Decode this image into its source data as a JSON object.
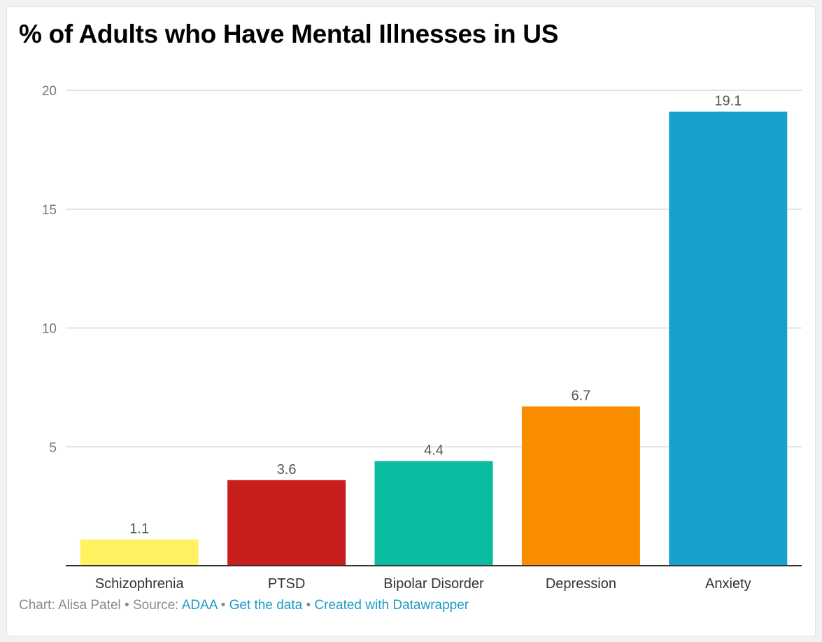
{
  "chart_data": {
    "type": "bar",
    "title": "% of Adults who Have Mental Illnesses in US",
    "categories": [
      "Schizophrenia",
      "PTSD",
      "Bipolar Disorder",
      "Depression",
      "Anxiety"
    ],
    "values": [
      1.1,
      3.6,
      4.4,
      6.7,
      19.1
    ],
    "value_labels": [
      "1.1",
      "3.6",
      "4.4",
      "6.7",
      "19.1"
    ],
    "colors": [
      "#fff15f",
      "#c71e1d",
      "#09bb9f",
      "#fa8c00",
      "#18a1cd"
    ],
    "ylim": [
      0,
      20
    ],
    "yticks": [
      5,
      10,
      15,
      20
    ],
    "ytick_labels": [
      "5",
      "10",
      "15",
      "20"
    ],
    "grid": true,
    "xlabel": "",
    "ylabel": ""
  },
  "footer": {
    "credit": "Chart: Alisa Patel",
    "source_prefix": "Source:",
    "source_name": "ADAA",
    "get_data": "Get the data",
    "created_with": "Created with Datawrapper",
    "separator": "•",
    "link_color": "#1d9bc6"
  }
}
